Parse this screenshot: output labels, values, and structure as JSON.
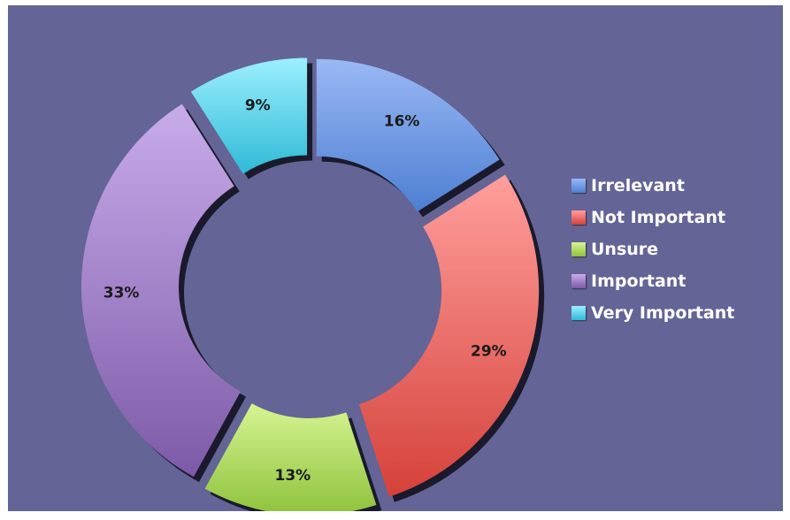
{
  "chart_data": {
    "type": "pie",
    "title": "",
    "categories": [
      "Irrelevant",
      "Not Important",
      "Unsure",
      "Important",
      "Very Important"
    ],
    "values": [
      16,
      29,
      13,
      33,
      9
    ],
    "labels": [
      "16%",
      "29%",
      "13%",
      "33%",
      "9%"
    ],
    "colors": [
      {
        "light": "#9ab8f5",
        "dark": "#4c7fd2"
      },
      {
        "light": "#ff9f9c",
        "dark": "#d5413a"
      },
      {
        "light": "#d6f492",
        "dark": "#8ec23c"
      },
      {
        "light": "#c8acea",
        "dark": "#7d5aa8"
      },
      {
        "light": "#9cefff",
        "dark": "#2fbad6"
      }
    ],
    "legend_position": "right",
    "donut": true,
    "exploded": true
  },
  "background_color": "#646496"
}
